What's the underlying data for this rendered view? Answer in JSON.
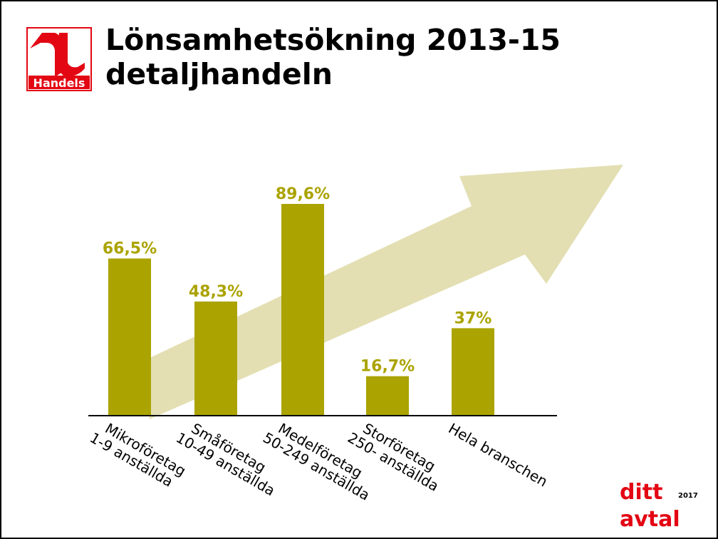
{
  "title_line1": "Lönsamhetsökning 2013-15",
  "title_line2": "detaljhandeln",
  "logo_text": "Handels",
  "footer_logo": {
    "line1": "ditt",
    "line2": "avtal",
    "year": "2017"
  },
  "colors": {
    "bar": "#aba300",
    "arrow": "#e3dfb3",
    "logo_red": "#e30613"
  },
  "chart_data": {
    "type": "bar",
    "categories": [
      [
        "Mikroföretag",
        "1-9 anställda"
      ],
      [
        "Småföretag",
        "10-49 anställda"
      ],
      [
        "Medelföretag",
        "50-249 anställda"
      ],
      [
        "Storföretag",
        "250- anställda"
      ],
      [
        "Hela branschen"
      ]
    ],
    "values": [
      66.5,
      48.3,
      89.6,
      16.7,
      37
    ],
    "data_labels": [
      "66,5%",
      "48,3%",
      "89,6%",
      "16,7%",
      "37%"
    ],
    "ylim": [
      0,
      100
    ],
    "grid": false,
    "decoration": "upward arrow behind bars"
  }
}
